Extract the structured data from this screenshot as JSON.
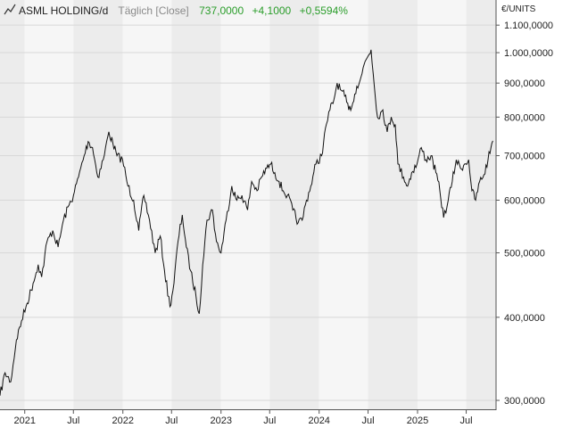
{
  "header": {
    "name": "ASML HOLDING/d",
    "mode": "Täglich [Close]",
    "last": "737,0000",
    "change": "+4,1000",
    "change_pct": "+0,5594%"
  },
  "colors": {
    "positive": "#2a9d2a",
    "muted": "#8a8a8a",
    "line": "#111111",
    "band_dark": "#ececec",
    "band_light": "#f6f6f6",
    "grid": "#d8d8d8"
  },
  "chart_data": {
    "type": "line",
    "scale": "log",
    "unit": "€/UNITS",
    "ylim": [
      290,
      1200
    ],
    "y_ticks": [
      {
        "value": 300,
        "label": "300,0000"
      },
      {
        "value": 400,
        "label": "400,0000"
      },
      {
        "value": 500,
        "label": "500,0000"
      },
      {
        "value": 600,
        "label": "600,0000"
      },
      {
        "value": 700,
        "label": "700,0000"
      },
      {
        "value": 800,
        "label": "800,0000"
      },
      {
        "value": 900,
        "label": "900,0000"
      },
      {
        "value": 1000,
        "label": "1.000,0000"
      },
      {
        "value": 1100,
        "label": "1.100,0000"
      }
    ],
    "x_range": [
      "2020-10-01",
      "2025-10-20"
    ],
    "x_ticks": [
      {
        "date": "2021-01-01",
        "label": "2021"
      },
      {
        "date": "2021-07-01",
        "label": "Jul"
      },
      {
        "date": "2022-01-01",
        "label": "2022"
      },
      {
        "date": "2022-07-01",
        "label": "Jul"
      },
      {
        "date": "2023-01-01",
        "label": "2023"
      },
      {
        "date": "2023-07-01",
        "label": "Jul"
      },
      {
        "date": "2024-01-01",
        "label": "2024"
      },
      {
        "date": "2024-07-01",
        "label": "Jul"
      },
      {
        "date": "2025-01-01",
        "label": "2025"
      },
      {
        "date": "2025-07-01",
        "label": "Jul"
      }
    ],
    "series": [
      {
        "values": [
          [
            "2020-10-01",
            305
          ],
          [
            "2020-10-20",
            330
          ],
          [
            "2020-11-10",
            320
          ],
          [
            "2020-12-01",
            370
          ],
          [
            "2020-12-20",
            395
          ],
          [
            "2021-01-10",
            420
          ],
          [
            "2021-02-01",
            450
          ],
          [
            "2021-02-20",
            480
          ],
          [
            "2021-03-05",
            460
          ],
          [
            "2021-03-25",
            520
          ],
          [
            "2021-04-15",
            540
          ],
          [
            "2021-05-05",
            510
          ],
          [
            "2021-05-25",
            560
          ],
          [
            "2021-06-15",
            590
          ],
          [
            "2021-07-01",
            610
          ],
          [
            "2021-07-20",
            650
          ],
          [
            "2021-08-10",
            700
          ],
          [
            "2021-08-25",
            735
          ],
          [
            "2021-09-10",
            720
          ],
          [
            "2021-09-30",
            650
          ],
          [
            "2021-10-20",
            690
          ],
          [
            "2021-11-10",
            760
          ],
          [
            "2021-11-25",
            730
          ],
          [
            "2021-12-10",
            700
          ],
          [
            "2021-12-31",
            690
          ],
          [
            "2022-01-20",
            630
          ],
          [
            "2022-02-10",
            600
          ],
          [
            "2022-03-01",
            540
          ],
          [
            "2022-03-20",
            610
          ],
          [
            "2022-04-10",
            560
          ],
          [
            "2022-05-01",
            500
          ],
          [
            "2022-05-20",
            530
          ],
          [
            "2022-06-05",
            470
          ],
          [
            "2022-06-25",
            415
          ],
          [
            "2022-07-10",
            450
          ],
          [
            "2022-07-25",
            520
          ],
          [
            "2022-08-10",
            570
          ],
          [
            "2022-08-25",
            510
          ],
          [
            "2022-09-10",
            470
          ],
          [
            "2022-09-30",
            430
          ],
          [
            "2022-10-12",
            405
          ],
          [
            "2022-10-25",
            480
          ],
          [
            "2022-11-10",
            560
          ],
          [
            "2022-11-30",
            580
          ],
          [
            "2022-12-15",
            520
          ],
          [
            "2023-01-01",
            500
          ],
          [
            "2023-01-20",
            560
          ],
          [
            "2023-02-10",
            630
          ],
          [
            "2023-03-01",
            600
          ],
          [
            "2023-03-20",
            610
          ],
          [
            "2023-04-10",
            580
          ],
          [
            "2023-04-25",
            640
          ],
          [
            "2023-05-15",
            620
          ],
          [
            "2023-06-01",
            650
          ],
          [
            "2023-06-20",
            670
          ],
          [
            "2023-07-05",
            680
          ],
          [
            "2023-07-20",
            660
          ],
          [
            "2023-08-05",
            640
          ],
          [
            "2023-08-20",
            620
          ],
          [
            "2023-09-05",
            610
          ],
          [
            "2023-09-25",
            580
          ],
          [
            "2023-10-15",
            555
          ],
          [
            "2023-10-30",
            560
          ],
          [
            "2023-11-15",
            600
          ],
          [
            "2023-12-01",
            630
          ],
          [
            "2023-12-20",
            680
          ],
          [
            "2024-01-10",
            700
          ],
          [
            "2024-01-28",
            780
          ],
          [
            "2024-02-10",
            820
          ],
          [
            "2024-02-25",
            850
          ],
          [
            "2024-03-08",
            900
          ],
          [
            "2024-03-20",
            880
          ],
          [
            "2024-04-05",
            860
          ],
          [
            "2024-04-20",
            820
          ],
          [
            "2024-05-05",
            840
          ],
          [
            "2024-05-20",
            890
          ],
          [
            "2024-06-05",
            920
          ],
          [
            "2024-06-20",
            970
          ],
          [
            "2024-07-02",
            990
          ],
          [
            "2024-07-12",
            1010
          ],
          [
            "2024-07-20",
            930
          ],
          [
            "2024-08-05",
            800
          ],
          [
            "2024-08-25",
            820
          ],
          [
            "2024-09-10",
            760
          ],
          [
            "2024-09-25",
            800
          ],
          [
            "2024-10-10",
            780
          ],
          [
            "2024-10-20",
            680
          ],
          [
            "2024-11-10",
            650
          ],
          [
            "2024-11-25",
            630
          ],
          [
            "2024-12-10",
            660
          ],
          [
            "2024-12-30",
            680
          ],
          [
            "2025-01-15",
            720
          ],
          [
            "2025-02-01",
            690
          ],
          [
            "2025-02-20",
            700
          ],
          [
            "2025-03-10",
            660
          ],
          [
            "2025-03-25",
            620
          ],
          [
            "2025-04-08",
            565
          ],
          [
            "2025-04-25",
            600
          ],
          [
            "2025-05-10",
            640
          ],
          [
            "2025-05-25",
            690
          ],
          [
            "2025-06-10",
            670
          ],
          [
            "2025-06-25",
            680
          ],
          [
            "2025-07-10",
            690
          ],
          [
            "2025-07-22",
            620
          ],
          [
            "2025-08-05",
            600
          ],
          [
            "2025-08-20",
            640
          ],
          [
            "2025-09-05",
            655
          ],
          [
            "2025-09-20",
            690
          ],
          [
            "2025-10-01",
            720
          ],
          [
            "2025-10-08",
            737
          ]
        ]
      }
    ]
  }
}
